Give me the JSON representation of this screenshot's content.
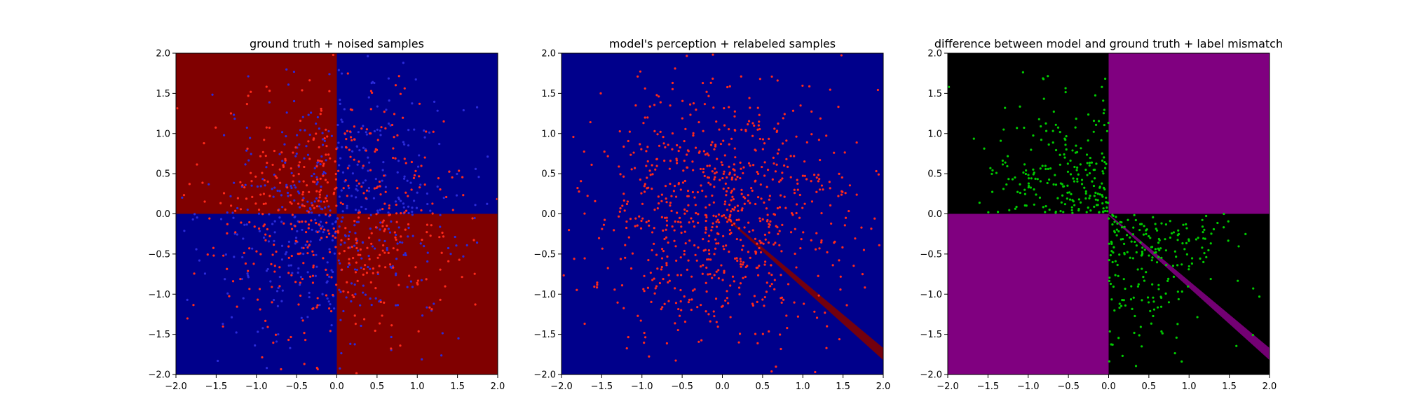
{
  "figure": {
    "background": "#ffffff"
  },
  "colors": {
    "dark_red": "#800000",
    "dark_blue": "#00008b",
    "black": "#000000",
    "purple": "#800080",
    "point_red": "#ff2a1a",
    "point_blue": "#2b2bd9",
    "point_green": "#00cc00"
  },
  "chart_data": [
    {
      "type": "heatmap",
      "title": "ground truth + noised samples",
      "xlabel": "",
      "ylabel": "",
      "xlim": [
        -2.0,
        2.0
      ],
      "ylim": [
        -2.0,
        2.0
      ],
      "x_ticks": [
        "−2.0",
        "−1.5",
        "−1.0",
        "−0.5",
        "0.0",
        "0.5",
        "1.0",
        "1.5",
        "2.0"
      ],
      "y_ticks": [
        "−2.0",
        "−1.5",
        "−1.0",
        "−0.5",
        "0.0",
        "0.5",
        "1.0",
        "1.5",
        "2.0"
      ],
      "grid": false,
      "regions": [
        {
          "name": "x<0, y>0",
          "x": [
            -2.0,
            0.0
          ],
          "y": [
            0.0,
            2.0
          ],
          "color": "dark_red"
        },
        {
          "name": "x>0, y>0",
          "x": [
            0.0,
            2.0
          ],
          "y": [
            0.0,
            2.0
          ],
          "color": "dark_blue"
        },
        {
          "name": "x<0, y<0",
          "x": [
            -2.0,
            0.0
          ],
          "y": [
            -2.0,
            0.0
          ],
          "color": "dark_blue"
        },
        {
          "name": "x>0, y<0",
          "x": [
            0.0,
            2.0
          ],
          "y": [
            -2.0,
            0.0
          ],
          "color": "dark_red"
        }
      ],
      "scatter": {
        "approx_points_per_color": 500,
        "distribution": "gaussian, sd ~0.8, centered at origin",
        "colors": [
          "point_red",
          "point_blue"
        ]
      }
    },
    {
      "type": "heatmap",
      "title": "model's perception + relabeled samples",
      "xlabel": "",
      "ylabel": "",
      "xlim": [
        -2.0,
        2.0
      ],
      "ylim": [
        -2.0,
        2.0
      ],
      "x_ticks": [
        "−2.0",
        "−1.5",
        "−1.0",
        "−0.5",
        "0.0",
        "0.5",
        "1.0",
        "1.5",
        "2.0"
      ],
      "y_ticks": [
        "−2.0",
        "−1.5",
        "−1.0",
        "−0.5",
        "0.0",
        "0.5",
        "1.0",
        "1.5",
        "2.0"
      ],
      "grid": false,
      "regions": [
        {
          "name": "background",
          "x": [
            -2.0,
            2.0
          ],
          "y": [
            -2.0,
            2.0
          ],
          "color": "dark_blue"
        }
      ],
      "band": {
        "color": "dark_red",
        "polygon": [
          [
            0.0,
            0.0
          ],
          [
            2.0,
            -1.67
          ],
          [
            2.0,
            -1.82
          ],
          [
            0.0,
            -0.02
          ]
        ]
      },
      "scatter": {
        "approx_points": 800,
        "distribution": "gaussian, sd ~0.8, centered at origin",
        "colors": [
          "point_red"
        ]
      }
    },
    {
      "type": "heatmap",
      "title": "difference between model and ground truth + label mismatch",
      "xlabel": "",
      "ylabel": "",
      "xlim": [
        -2.0,
        2.0
      ],
      "ylim": [
        -2.0,
        2.0
      ],
      "x_ticks": [
        "−2.0",
        "−1.5",
        "−1.0",
        "−0.5",
        "0.0",
        "0.5",
        "1.0",
        "1.5",
        "2.0"
      ],
      "y_ticks": [
        "−2.0",
        "−1.5",
        "−1.0",
        "−0.5",
        "0.0",
        "0.5",
        "1.0",
        "1.5",
        "2.0"
      ],
      "grid": false,
      "regions": [
        {
          "name": "x<0, y>0",
          "x": [
            -2.0,
            0.0
          ],
          "y": [
            0.0,
            2.0
          ],
          "color": "black"
        },
        {
          "name": "x>0, y>0",
          "x": [
            0.0,
            2.0
          ],
          "y": [
            0.0,
            2.0
          ],
          "color": "purple"
        },
        {
          "name": "x<0, y<0",
          "x": [
            -2.0,
            0.0
          ],
          "y": [
            -2.0,
            0.0
          ],
          "color": "purple"
        },
        {
          "name": "x>0, y<0",
          "x": [
            0.0,
            2.0
          ],
          "y": [
            -2.0,
            0.0
          ],
          "color": "black"
        }
      ],
      "band": {
        "color": "purple",
        "polygon": [
          [
            0.0,
            0.0
          ],
          [
            2.0,
            -1.67
          ],
          [
            2.0,
            -1.82
          ],
          [
            0.0,
            -0.02
          ]
        ]
      },
      "scatter": {
        "approx_points": 450,
        "distribution": "gaussian, sd ~0.8, only in x<0,y>0 and x>0,y<0 quadrants",
        "colors": [
          "point_green"
        ]
      }
    }
  ]
}
